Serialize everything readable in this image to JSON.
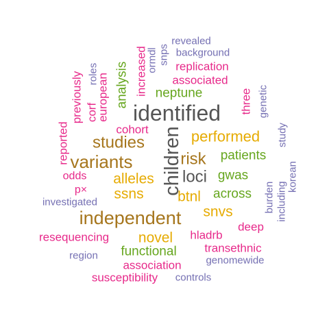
{
  "colors": {
    "pink": "#e7298a",
    "green": "#66a61e",
    "gold": "#e6ab02",
    "brown": "#a6761d",
    "dark": "#555555",
    "purple": "#7570b3"
  },
  "words": [
    {
      "text": "identified",
      "color": "#555555"
    },
    {
      "text": "children",
      "color": "#555555"
    },
    {
      "text": "independent",
      "color": "#a6761d"
    },
    {
      "text": "variants",
      "color": "#a6761d"
    },
    {
      "text": "studies",
      "color": "#a6761d"
    },
    {
      "text": "risk",
      "color": "#a6761d"
    },
    {
      "text": "loci",
      "color": "#555555"
    },
    {
      "text": "performed",
      "color": "#e6ab02"
    },
    {
      "text": "alleles",
      "color": "#e6ab02"
    },
    {
      "text": "ssns",
      "color": "#e6ab02"
    },
    {
      "text": "btnl",
      "color": "#e6ab02"
    },
    {
      "text": "snvs",
      "color": "#e6ab02"
    },
    {
      "text": "novel",
      "color": "#e6ab02"
    },
    {
      "text": "patients",
      "color": "#66a61e"
    },
    {
      "text": "gwas",
      "color": "#66a61e"
    },
    {
      "text": "across",
      "color": "#66a61e"
    },
    {
      "text": "neptune",
      "color": "#66a61e"
    },
    {
      "text": "analysis",
      "color": "#66a61e"
    },
    {
      "text": "functional",
      "color": "#66a61e"
    },
    {
      "text": "associated",
      "color": "#e7298a"
    },
    {
      "text": "replication",
      "color": "#e7298a"
    },
    {
      "text": "increased",
      "color": "#e7298a"
    },
    {
      "text": "cohort",
      "color": "#e7298a"
    },
    {
      "text": "european",
      "color": "#e7298a"
    },
    {
      "text": "corf",
      "color": "#e7298a"
    },
    {
      "text": "previously",
      "color": "#e7298a"
    },
    {
      "text": "reported",
      "color": "#e7298a"
    },
    {
      "text": "odds",
      "color": "#e7298a"
    },
    {
      "text": "p×",
      "color": "#e7298a"
    },
    {
      "text": "resequencing",
      "color": "#e7298a"
    },
    {
      "text": "hladrb",
      "color": "#e7298a"
    },
    {
      "text": "deep",
      "color": "#e7298a"
    },
    {
      "text": "transethnic",
      "color": "#e7298a"
    },
    {
      "text": "association",
      "color": "#e7298a"
    },
    {
      "text": "susceptibility",
      "color": "#e7298a"
    },
    {
      "text": "three",
      "color": "#e7298a"
    },
    {
      "text": "revealed",
      "color": "#7570b3"
    },
    {
      "text": "background",
      "color": "#7570b3"
    },
    {
      "text": "ormdl",
      "color": "#7570b3"
    },
    {
      "text": "snps",
      "color": "#7570b3"
    },
    {
      "text": "roles",
      "color": "#7570b3"
    },
    {
      "text": "genetic",
      "color": "#7570b3"
    },
    {
      "text": "study",
      "color": "#7570b3"
    },
    {
      "text": "korean",
      "color": "#7570b3"
    },
    {
      "text": "including",
      "color": "#7570b3"
    },
    {
      "text": "burden",
      "color": "#7570b3"
    },
    {
      "text": "investigated",
      "color": "#7570b3"
    },
    {
      "text": "region",
      "color": "#7570b3"
    },
    {
      "text": "genomewide",
      "color": "#7570b3"
    },
    {
      "text": "controls",
      "color": "#7570b3"
    }
  ]
}
